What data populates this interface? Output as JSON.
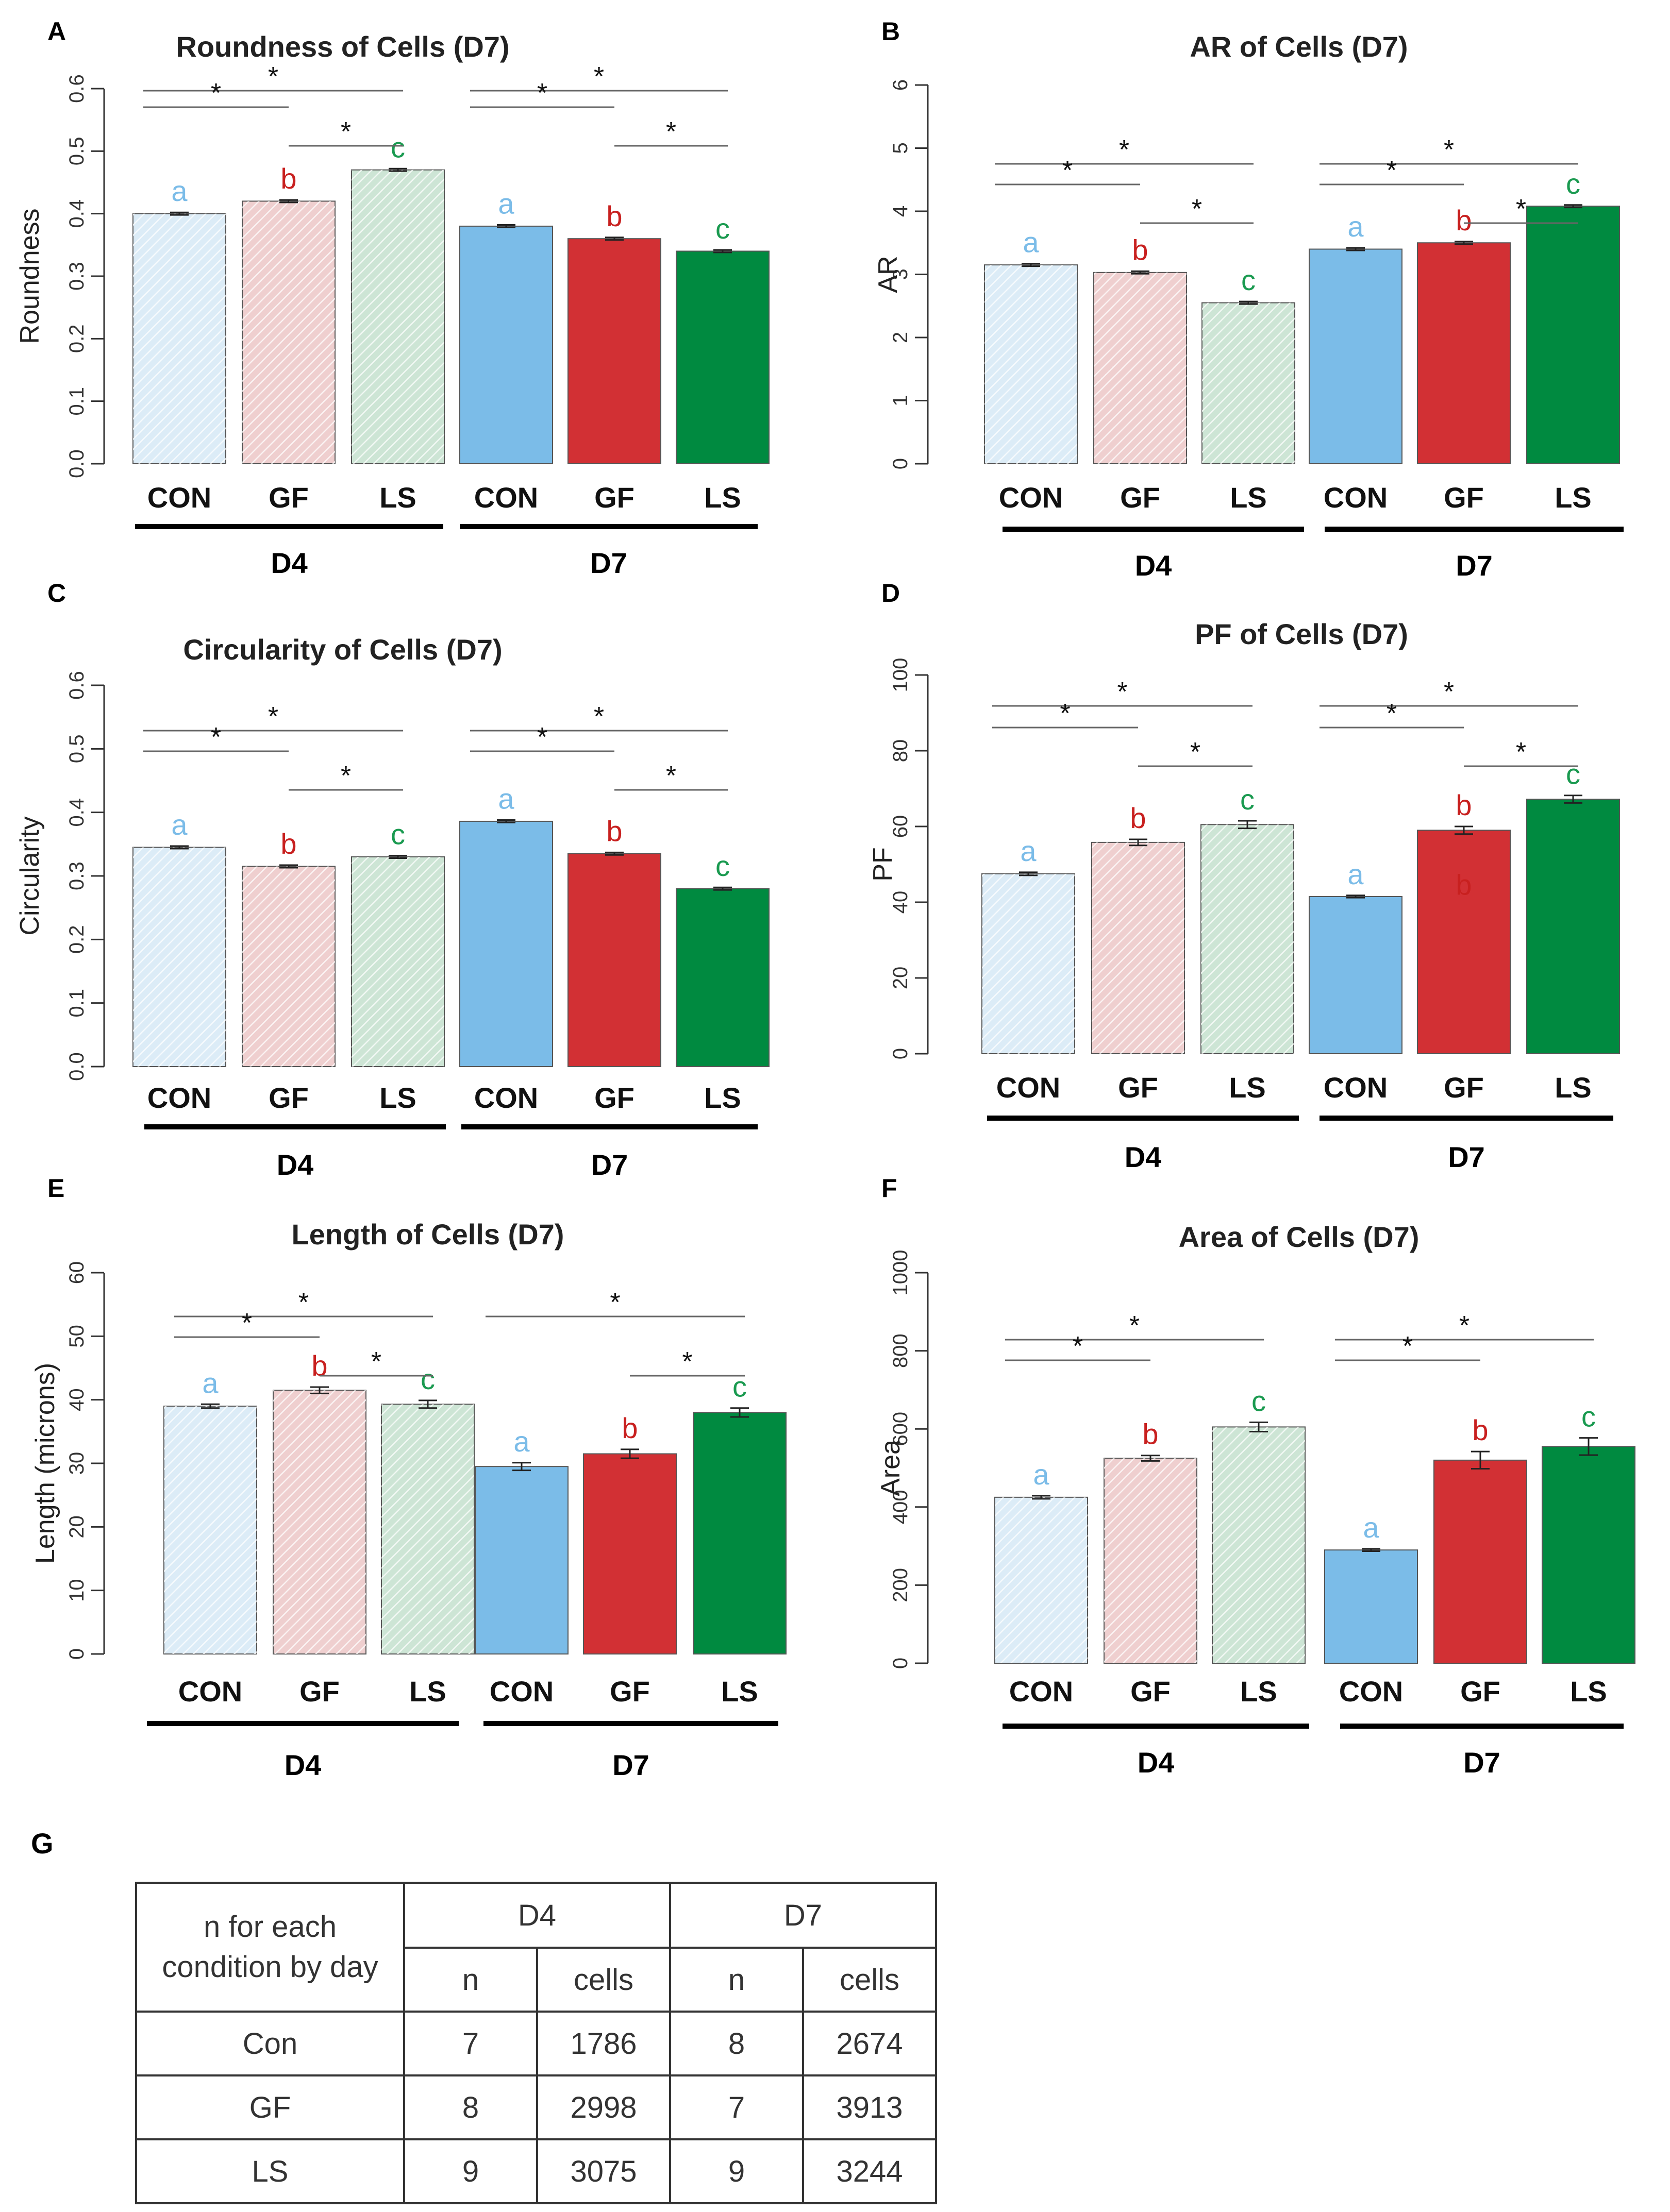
{
  "colors": {
    "con_light": "#dcecf7",
    "gf_light": "#efcfcf",
    "ls_light": "#cde5d5",
    "con_dark": "#7bbce8",
    "gf_dark": "#d23034",
    "ls_dark": "#008a40",
    "letter_a": "#7bbce8",
    "letter_b": "#c8201f",
    "letter_c": "#1a9a50",
    "hatch": "#ffffff"
  },
  "chart_data": [
    {
      "type": "bar",
      "panel": "A",
      "title": "Roundness of Cells (D7)",
      "ylabel": "Roundness",
      "ylim": [
        0,
        0.6
      ],
      "yticks": [
        "0.0",
        "0.1",
        "0.2",
        "0.3",
        "0.4",
        "0.5",
        "0.6"
      ],
      "categories": [
        "CON",
        "GF",
        "LS",
        "CON",
        "GF",
        "LS"
      ],
      "groups": [
        "D4",
        "D7"
      ],
      "values": [
        0.4,
        0.42,
        0.47,
        0.38,
        0.36,
        0.34
      ],
      "errors": [
        0.002,
        0.002,
        0.002,
        0.002,
        0.002,
        0.002
      ],
      "letters": [
        "a",
        "b",
        "c",
        "a",
        "b",
        "c"
      ],
      "significance": [
        {
          "from": 0,
          "to": 2,
          "label": "*"
        },
        {
          "from": 0,
          "to": 1,
          "label": "*"
        },
        {
          "from": 1,
          "to": 2,
          "label": "*"
        },
        {
          "from": 3,
          "to": 5,
          "label": "*"
        },
        {
          "from": 3,
          "to": 4,
          "label": "*"
        },
        {
          "from": 4,
          "to": 5,
          "label": "*"
        }
      ]
    },
    {
      "type": "bar",
      "panel": "B",
      "title": "AR of Cells (D7)",
      "ylabel": "AR",
      "ylim": [
        0,
        6
      ],
      "yticks": [
        "0",
        "1",
        "2",
        "3",
        "4",
        "5",
        "6"
      ],
      "categories": [
        "CON",
        "GF",
        "LS",
        "CON",
        "GF",
        "LS"
      ],
      "groups": [
        "D4",
        "D7"
      ],
      "values": [
        3.15,
        3.03,
        2.55,
        3.4,
        3.5,
        4.08
      ],
      "errors": [
        0.02,
        0.02,
        0.02,
        0.02,
        0.02,
        0.02
      ],
      "letters": [
        "a",
        "b",
        "c",
        "a",
        "b",
        "c"
      ],
      "significance": [
        {
          "from": 0,
          "to": 2,
          "label": "*"
        },
        {
          "from": 0,
          "to": 1,
          "label": "*"
        },
        {
          "from": 1,
          "to": 2,
          "label": "*"
        },
        {
          "from": 3,
          "to": 5,
          "label": "*"
        },
        {
          "from": 3,
          "to": 4,
          "label": "*"
        },
        {
          "from": 4,
          "to": 5,
          "label": "*"
        }
      ]
    },
    {
      "type": "bar",
      "panel": "C",
      "title": "Circularity of Cells (D7)",
      "ylabel": "Circularity",
      "ylim": [
        0,
        0.6
      ],
      "yticks": [
        "0.0",
        "0.1",
        "0.2",
        "0.3",
        "0.4",
        "0.5",
        "0.6"
      ],
      "categories": [
        "CON",
        "GF",
        "LS",
        "CON",
        "GF",
        "LS"
      ],
      "groups": [
        "D4",
        "D7"
      ],
      "values": [
        0.345,
        0.315,
        0.33,
        0.386,
        0.335,
        0.28
      ],
      "errors": [
        0.002,
        0.002,
        0.002,
        0.002,
        0.002,
        0.002
      ],
      "letters": [
        "a",
        "b",
        "c",
        "a",
        "b",
        "c"
      ],
      "significance": [
        {
          "from": 0,
          "to": 2,
          "label": "*"
        },
        {
          "from": 0,
          "to": 1,
          "label": "*"
        },
        {
          "from": 1,
          "to": 2,
          "label": "*"
        },
        {
          "from": 3,
          "to": 5,
          "label": "*"
        },
        {
          "from": 3,
          "to": 4,
          "label": "*"
        },
        {
          "from": 4,
          "to": 5,
          "label": "*"
        }
      ]
    },
    {
      "type": "bar",
      "panel": "D",
      "title": "PF of Cells (D7)",
      "ylabel": "PF",
      "ylim": [
        0,
        100
      ],
      "yticks": [
        "0",
        "20",
        "40",
        "60",
        "80",
        "100"
      ],
      "categories": [
        "CON",
        "GF",
        "LS",
        "CON",
        "GF",
        "LS"
      ],
      "groups": [
        "D4",
        "D7"
      ],
      "values": [
        47.5,
        55.8,
        60.5,
        41.5,
        59.0,
        67.2
      ],
      "errors": [
        0.4,
        0.8,
        1.0,
        0.3,
        1.0,
        1.0
      ],
      "letters": [
        "a",
        "b",
        "c",
        "a",
        "b",
        "c"
      ],
      "extra_letters": [
        {
          "bar": 4,
          "value": 42,
          "label": "b"
        }
      ],
      "significance": [
        {
          "from": 0,
          "to": 2,
          "label": "*"
        },
        {
          "from": 0,
          "to": 1,
          "label": "*"
        },
        {
          "from": 1,
          "to": 2,
          "label": "*"
        },
        {
          "from": 3,
          "to": 5,
          "label": "*"
        },
        {
          "from": 3,
          "to": 4,
          "label": "*"
        },
        {
          "from": 4,
          "to": 5,
          "label": "*"
        }
      ]
    },
    {
      "type": "bar",
      "panel": "E",
      "title": "Length of Cells (D7)",
      "ylabel": "Length (microns)",
      "ylim": [
        0,
        60
      ],
      "yticks": [
        "0",
        "10",
        "20",
        "30",
        "40",
        "50",
        "60"
      ],
      "categories": [
        "CON",
        "GF",
        "LS",
        "CON",
        "GF",
        "LS"
      ],
      "groups": [
        "D4",
        "D7"
      ],
      "values": [
        39.0,
        41.5,
        39.3,
        29.5,
        31.5,
        38.0
      ],
      "errors": [
        0.3,
        0.5,
        0.6,
        0.6,
        0.7,
        0.7
      ],
      "letters": [
        "a",
        "b",
        "c",
        "a",
        "b",
        "c"
      ],
      "significance": [
        {
          "from": 0,
          "to": 2,
          "label": "*"
        },
        {
          "from": 0,
          "to": 1,
          "label": "*"
        },
        {
          "from": 1,
          "to": 2,
          "label": "*"
        },
        {
          "from": 3,
          "to": 5,
          "label": "*"
        },
        {
          "from": 4,
          "to": 5,
          "label": "*"
        }
      ]
    },
    {
      "type": "bar",
      "panel": "F",
      "title": "Area of Cells (D7)",
      "ylabel": "Area",
      "ylim": [
        0,
        1000
      ],
      "yticks": [
        "0",
        "200",
        "400",
        "600",
        "800",
        "1000"
      ],
      "categories": [
        "CON",
        "GF",
        "LS",
        "CON",
        "GF",
        "LS"
      ],
      "groups": [
        "D4",
        "D7"
      ],
      "values": [
        425,
        525,
        605,
        290,
        520,
        555
      ],
      "errors": [
        4,
        7,
        12,
        3,
        22,
        22
      ],
      "letters": [
        "a",
        "b",
        "c",
        "a",
        "b",
        "c"
      ],
      "significance": [
        {
          "from": 0,
          "to": 2,
          "label": "*"
        },
        {
          "from": 0,
          "to": 1,
          "label": "*"
        },
        {
          "from": 3,
          "to": 5,
          "label": "*"
        },
        {
          "from": 3,
          "to": 4,
          "label": "*"
        }
      ]
    }
  ],
  "table": {
    "panel": "G",
    "corner_line1": "n for each",
    "corner_line2": "condition by day",
    "days": [
      "D4",
      "D7"
    ],
    "subheaders": [
      "n",
      "cells",
      "n",
      "cells"
    ],
    "rows": [
      {
        "label": "Con",
        "values": [
          "7",
          "1786",
          "8",
          "2674"
        ]
      },
      {
        "label": "GF",
        "values": [
          "8",
          "2998",
          "7",
          "3913"
        ]
      },
      {
        "label": "LS",
        "values": [
          "9",
          "3075",
          "9",
          "3244"
        ]
      }
    ]
  }
}
